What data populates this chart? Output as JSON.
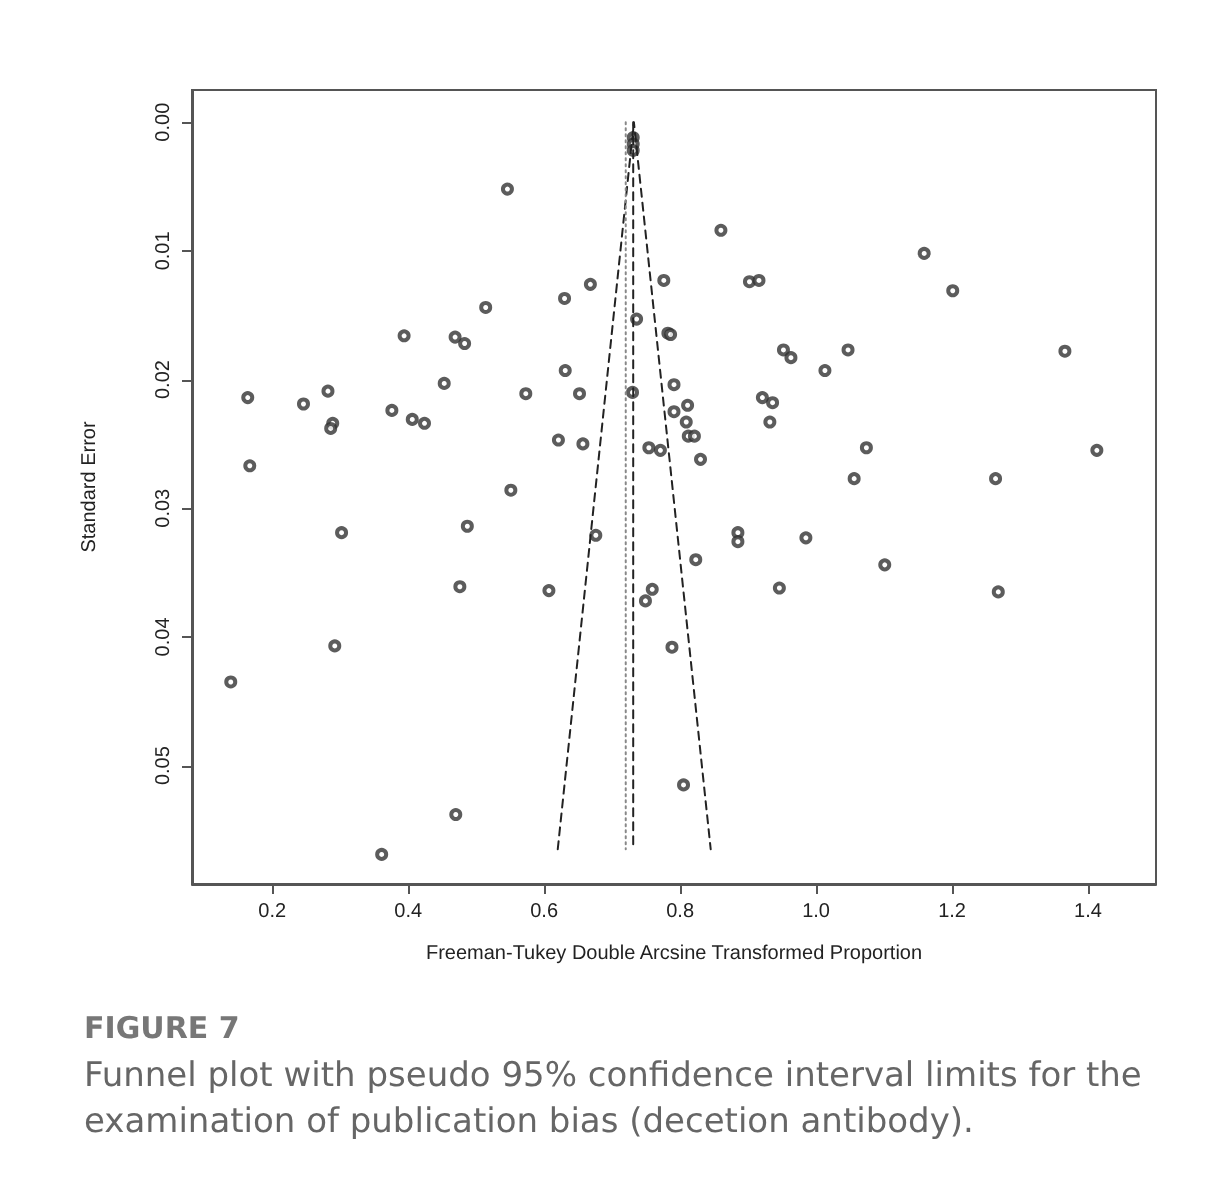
{
  "chart_data": {
    "type": "scatter",
    "xlabel": "Freeman-Tukey Double Arcsine Transformed Proportion",
    "ylabel": "Standard Error",
    "annotations": [
      "FIGURE 7",
      "Funnel plot with pseudo 95% confidence interval limits for the examination of publication bias (decetion antibody)."
    ],
    "xlim": [
      0.082,
      1.5
    ],
    "ylim": [
      0.0592,
      -0.0025
    ],
    "xticks": [
      0.2,
      0.4,
      0.6,
      0.8,
      {
        "value": 1,
        "label": "1.0"
      },
      1.2,
      1.4
    ],
    "yticks": [
      {
        "value": 0,
        "label": "0.00"
      },
      0.01,
      0.02,
      0.03,
      0.04,
      0.05
    ],
    "grid": false,
    "marker": "circle",
    "series": [
      {
        "color": "#333333",
        "x": [
          0.164,
          0.167,
          0.246,
          0.282,
          0.289,
          0.286,
          0.302,
          0.394,
          0.376,
          0.406,
          0.424,
          0.453,
          0.469,
          0.483,
          0.514,
          0.546,
          0.551,
          0.487,
          0.476,
          0.573,
          0.607,
          0.621,
          0.63,
          0.631,
          0.652,
          0.657,
          0.668,
          0.676,
          0.73,
          0.736,
          0.731,
          0.731,
          0.731,
          0.86,
          0.776,
          0.782,
          0.786,
          0.791,
          0.791,
          0.811,
          0.809,
          0.812,
          0.821,
          0.83,
          0.754,
          0.771,
          0.902,
          0.916,
          0.952,
          0.963,
          1.013,
          1.047,
          0.921,
          0.936,
          0.932,
          1.074,
          1.056,
          1.159,
          1.201,
          1.264,
          1.366,
          1.413,
          0.885,
          0.885,
          0.985,
          0.823,
          1.101,
          0.946,
          1.268,
          0.759,
          0.749,
          0.788,
          0.805,
          0.139,
          0.292,
          0.361,
          0.47
        ],
        "values": [
          0.0214,
          0.0267,
          0.0219,
          0.0209,
          0.0234,
          0.0238,
          0.0319,
          0.0166,
          0.0224,
          0.0231,
          0.0234,
          0.0203,
          0.0167,
          0.0172,
          0.0144,
          0.0052,
          0.0286,
          0.0314,
          0.0361,
          0.0211,
          0.0364,
          0.0247,
          0.0137,
          0.0193,
          0.0211,
          0.025,
          0.0126,
          0.0321,
          0.021,
          0.0153,
          0.0012,
          0.0017,
          0.0022,
          0.0084,
          0.0123,
          0.0164,
          0.0165,
          0.0204,
          0.0225,
          0.022,
          0.0233,
          0.0244,
          0.0244,
          0.0262,
          0.0253,
          0.0255,
          0.0124,
          0.0123,
          0.0177,
          0.0183,
          0.0193,
          0.0177,
          0.0214,
          0.0218,
          0.0233,
          0.0253,
          0.0277,
          0.0102,
          0.0131,
          0.0277,
          0.0178,
          0.0255,
          0.0319,
          0.0326,
          0.0323,
          0.034,
          0.0344,
          0.0362,
          0.0365,
          0.0363,
          0.0372,
          0.0408,
          0.0515,
          0.0435,
          0.0407,
          0.0569,
          0.0538
        ]
      },
      {
        "type": "line",
        "color": "#222222",
        "line_style": "dashed",
        "marker": "none",
        "x": [
          0.62,
          0.732,
          0.845
        ],
        "values": [
          0.0565,
          0,
          0.0565
        ]
      },
      {
        "type": "line",
        "color": "#222222",
        "line_style": "dashed",
        "marker": "none",
        "x": [
          0.731,
          0.731
        ],
        "values": [
          0,
          0.0565
        ]
      },
      {
        "type": "line",
        "color": "#888888",
        "line_style": "dotted",
        "marker": "none",
        "x": [
          0.72,
          0.72
        ],
        "values": [
          0,
          0.0565
        ]
      }
    ]
  }
}
